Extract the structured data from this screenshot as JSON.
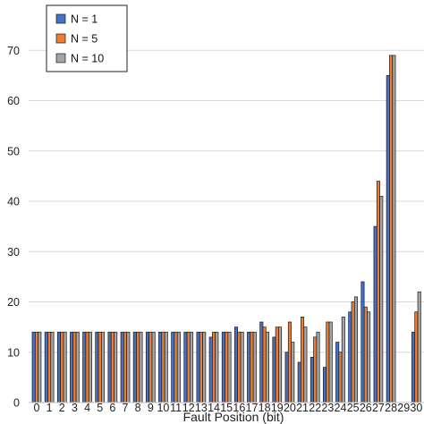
{
  "chart_data": {
    "type": "bar",
    "title": "",
    "xlabel": "Fault Position (bit)",
    "ylabel": "",
    "ylim": [
      0,
      80
    ],
    "yticks": [
      0,
      10,
      20,
      30,
      40,
      50,
      60,
      70
    ],
    "grid": true,
    "legend_position": "top-left",
    "categories": [
      "0",
      "1",
      "2",
      "3",
      "4",
      "5",
      "6",
      "7",
      "8",
      "9",
      "10",
      "11",
      "12",
      "13",
      "14",
      "15",
      "16",
      "17",
      "18",
      "19",
      "20",
      "21",
      "22",
      "23",
      "24",
      "25",
      "26",
      "27",
      "28",
      "29",
      "30"
    ],
    "x_tick_labels": [
      "0",
      "1",
      "2",
      "3",
      "4",
      "5",
      "6",
      "7",
      "8",
      "9",
      "10",
      "11",
      "12",
      "13",
      "14",
      "15",
      "16",
      "17",
      "18",
      "19",
      "20",
      "21",
      "22",
      "23",
      "24",
      "25",
      "26",
      "27",
      "28",
      "29",
      "30"
    ],
    "series": [
      {
        "name": "N = 1",
        "color": "#4472C4",
        "values": [
          14,
          14,
          14,
          14,
          14,
          14,
          14,
          14,
          14,
          14,
          14,
          14,
          14,
          14,
          13,
          14,
          15,
          14,
          16,
          13,
          10,
          8,
          9,
          7,
          12,
          18,
          24,
          35,
          65,
          0,
          14
        ]
      },
      {
        "name": "N = 5",
        "color": "#ED7D31",
        "values": [
          14,
          14,
          14,
          14,
          14,
          14,
          14,
          14,
          14,
          14,
          14,
          14,
          14,
          14,
          14,
          14,
          14,
          14,
          15,
          15,
          16,
          17,
          13,
          16,
          10,
          20,
          19,
          44,
          69,
          0,
          18
        ]
      },
      {
        "name": "N = 10",
        "color": "#A5A5A5",
        "values": [
          14,
          14,
          14,
          14,
          14,
          14,
          14,
          14,
          14,
          14,
          14,
          14,
          14,
          14,
          14,
          14,
          14,
          14,
          14,
          15,
          12,
          15,
          14,
          16,
          17,
          21,
          18,
          41,
          69,
          0,
          22
        ]
      }
    ]
  }
}
